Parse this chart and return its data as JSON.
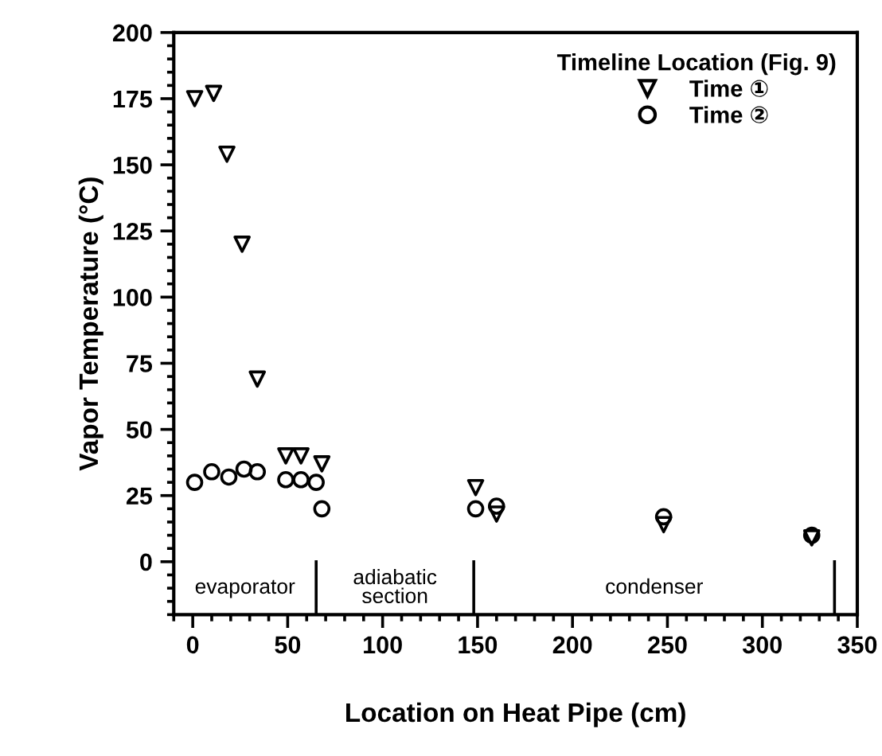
{
  "chart_data": {
    "type": "scatter",
    "xlabel": "Location on Heat Pipe (cm)",
    "ylabel": "Vapor Temperature (°C)",
    "legend_title": "Timeline Location (Fig. 9)",
    "xlim": [
      -10,
      350
    ],
    "ylim": [
      -20,
      200
    ],
    "xticks": [
      0,
      50,
      100,
      150,
      200,
      250,
      300,
      350
    ],
    "yticks": [
      0,
      25,
      50,
      75,
      100,
      125,
      150,
      175,
      200
    ],
    "grid": false,
    "legend": "top right",
    "series": [
      {
        "name": "Time ①",
        "color": "#000000",
        "marker": "triangle",
        "x": [
          1,
          11,
          18,
          26,
          34,
          49,
          57,
          68,
          149,
          160,
          248,
          326
        ],
        "values": [
          175,
          177,
          154,
          120,
          69,
          40,
          40,
          37,
          28,
          18,
          14,
          9
        ]
      },
      {
        "name": "Time ②",
        "color": "#000000",
        "marker": "circle",
        "x": [
          1,
          10,
          19,
          27,
          34,
          49,
          57,
          65,
          68,
          149,
          160,
          248,
          326
        ],
        "values": [
          30,
          34,
          32,
          35,
          34,
          31,
          31,
          30,
          20,
          20,
          21,
          17,
          10
        ]
      }
    ],
    "ref_lines": [
      {
        "axis": "x",
        "value": 65,
        "color": "#000000"
      },
      {
        "axis": "x",
        "value": 148,
        "color": "#000000"
      },
      {
        "axis": "x",
        "value": 338,
        "color": "#000000"
      }
    ],
    "annotations": [
      "evaporator",
      "adiabatic\nsection",
      "condenser"
    ]
  }
}
